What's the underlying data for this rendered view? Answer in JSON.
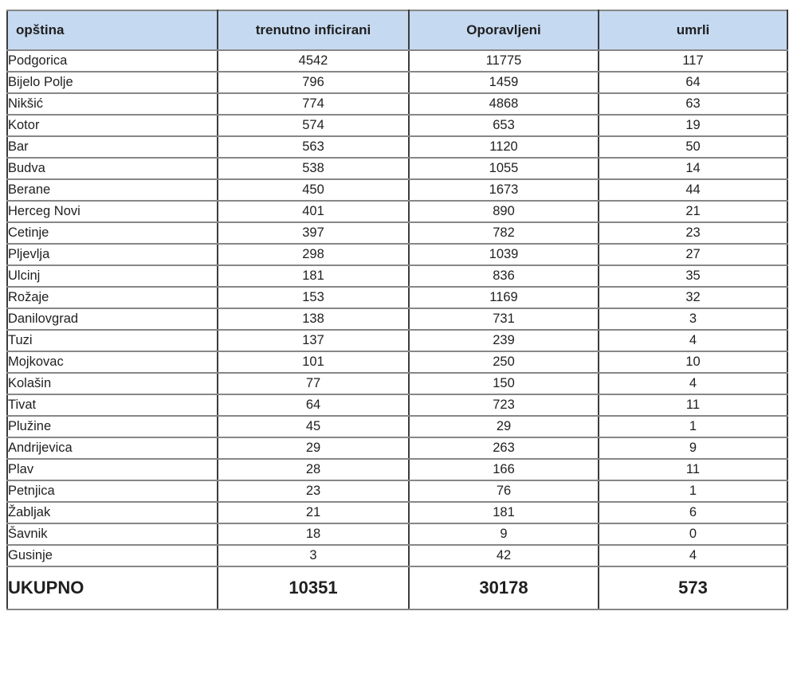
{
  "table": {
    "headers": {
      "municipality": "opština",
      "infected": "trenutno inficirani",
      "recovered": "Oporavljeni",
      "deaths": "umrli"
    },
    "rows": [
      {
        "municipality": "Podgorica",
        "infected": "4542",
        "recovered": "11775",
        "deaths": "117"
      },
      {
        "municipality": "Bijelo Polje",
        "infected": "796",
        "recovered": "1459",
        "deaths": "64"
      },
      {
        "municipality": "Nikšić",
        "infected": "774",
        "recovered": "4868",
        "deaths": "63"
      },
      {
        "municipality": "Kotor",
        "infected": "574",
        "recovered": "653",
        "deaths": "19"
      },
      {
        "municipality": "Bar",
        "infected": "563",
        "recovered": "1120",
        "deaths": "50"
      },
      {
        "municipality": "Budva",
        "infected": "538",
        "recovered": "1055",
        "deaths": "14"
      },
      {
        "municipality": "Berane",
        "infected": "450",
        "recovered": "1673",
        "deaths": "44"
      },
      {
        "municipality": "Herceg Novi",
        "infected": "401",
        "recovered": "890",
        "deaths": "21"
      },
      {
        "municipality": "Cetinje",
        "infected": "397",
        "recovered": "782",
        "deaths": "23"
      },
      {
        "municipality": "Pljevlja",
        "infected": "298",
        "recovered": "1039",
        "deaths": "27"
      },
      {
        "municipality": "Ulcinj",
        "infected": "181",
        "recovered": "836",
        "deaths": "35"
      },
      {
        "municipality": "Rožaje",
        "infected": "153",
        "recovered": "1169",
        "deaths": "32"
      },
      {
        "municipality": "Danilovgrad",
        "infected": "138",
        "recovered": "731",
        "deaths": "3"
      },
      {
        "municipality": "Tuzi",
        "infected": "137",
        "recovered": "239",
        "deaths": "4"
      },
      {
        "municipality": "Mojkovac",
        "infected": "101",
        "recovered": "250",
        "deaths": "10"
      },
      {
        "municipality": "Kolašin",
        "infected": "77",
        "recovered": "150",
        "deaths": "4"
      },
      {
        "municipality": "Tivat",
        "infected": "64",
        "recovered": "723",
        "deaths": "11"
      },
      {
        "municipality": "Plužine",
        "infected": "45",
        "recovered": "29",
        "deaths": "1"
      },
      {
        "municipality": "Andrijevica",
        "infected": "29",
        "recovered": "263",
        "deaths": "9"
      },
      {
        "municipality": "Plav",
        "infected": "28",
        "recovered": "166",
        "deaths": "11"
      },
      {
        "municipality": "Petnjica",
        "infected": "23",
        "recovered": "76",
        "deaths": "1"
      },
      {
        "municipality": "Žabljak",
        "infected": "21",
        "recovered": "181",
        "deaths": "6"
      },
      {
        "municipality": "Šavnik",
        "infected": "18",
        "recovered": "9",
        "deaths": "0"
      },
      {
        "municipality": "Gusinje",
        "infected": "3",
        "recovered": "42",
        "deaths": "4"
      }
    ],
    "total": {
      "label": "UKUPNO",
      "infected": "10351",
      "recovered": "30178",
      "deaths": "573"
    }
  },
  "colors": {
    "header_bg": "#C5D9F1",
    "border_vertical": "#3C3C3C",
    "border_horizontal": "#878787",
    "text": "#1F1F1F"
  },
  "chart_data": {
    "type": "table",
    "title": "",
    "columns": [
      "opština",
      "trenutno inficirani",
      "Oporavljeni",
      "umrli"
    ],
    "rows": [
      [
        "Podgorica",
        4542,
        11775,
        117
      ],
      [
        "Bijelo Polje",
        796,
        1459,
        64
      ],
      [
        "Nikšić",
        774,
        4868,
        63
      ],
      [
        "Kotor",
        574,
        653,
        19
      ],
      [
        "Bar",
        563,
        1120,
        50
      ],
      [
        "Budva",
        538,
        1055,
        14
      ],
      [
        "Berane",
        450,
        1673,
        44
      ],
      [
        "Herceg Novi",
        401,
        890,
        21
      ],
      [
        "Cetinje",
        397,
        782,
        23
      ],
      [
        "Pljevlja",
        298,
        1039,
        27
      ],
      [
        "Ulcinj",
        181,
        836,
        35
      ],
      [
        "Rožaje",
        153,
        1169,
        32
      ],
      [
        "Danilovgrad",
        138,
        731,
        3
      ],
      [
        "Tuzi",
        137,
        239,
        4
      ],
      [
        "Mojkovac",
        101,
        250,
        10
      ],
      [
        "Kolašin",
        77,
        150,
        4
      ],
      [
        "Tivat",
        64,
        723,
        11
      ],
      [
        "Plužine",
        45,
        29,
        1
      ],
      [
        "Andrijevica",
        29,
        263,
        9
      ],
      [
        "Plav",
        28,
        166,
        11
      ],
      [
        "Petnjica",
        23,
        76,
        1
      ],
      [
        "Žabljak",
        21,
        181,
        6
      ],
      [
        "Šavnik",
        18,
        9,
        0
      ],
      [
        "Gusinje",
        3,
        42,
        4
      ]
    ],
    "totals_row": [
      "UKUPNO",
      10351,
      30178,
      573
    ]
  }
}
